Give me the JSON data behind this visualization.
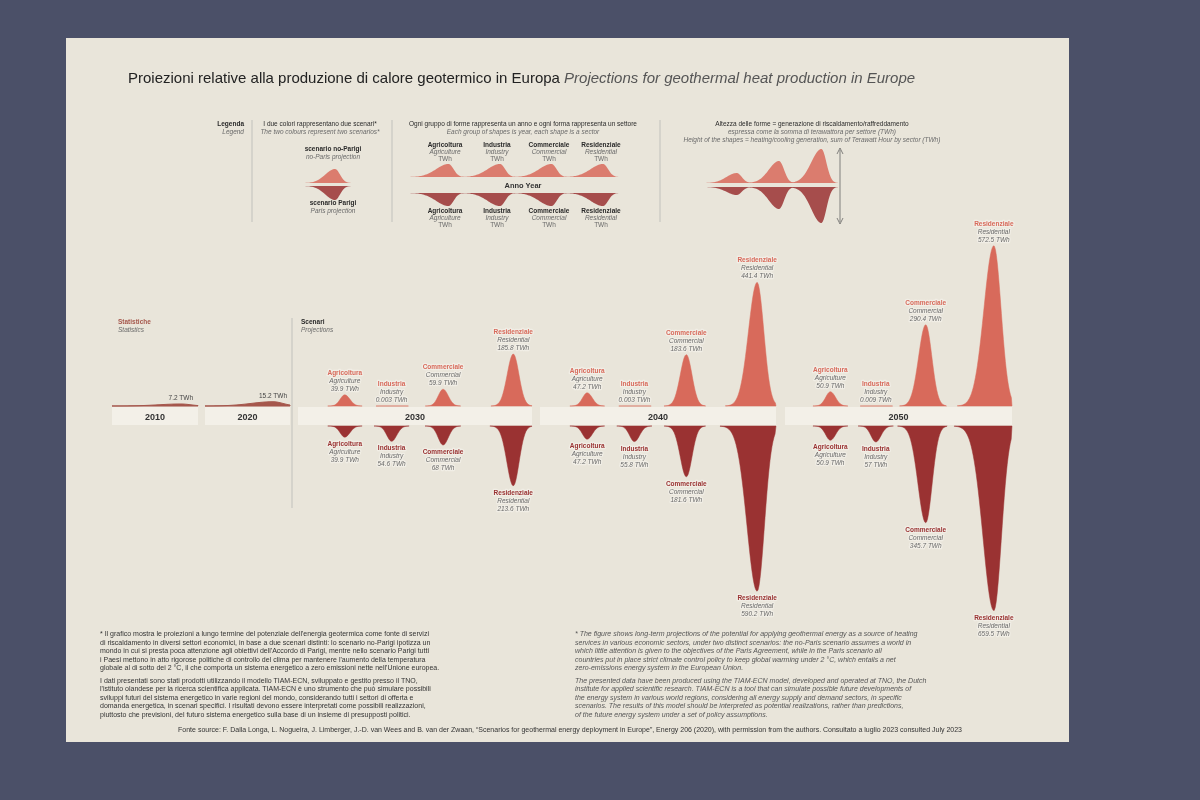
{
  "chart_data": {
    "type": "other",
    "title": "Proiezioni relative alla produzione di calore geotermico in Europa",
    "subtitle": "Projections for geothermal heat production in Europe",
    "categories": [
      "2010",
      "2020",
      "2030",
      "2040",
      "2050"
    ],
    "series": [
      {
        "name": "Statistiche\nStatistics",
        "type": "area",
        "color": "#a5574c",
        "values": [
          7.2,
          15.2,
          null,
          null,
          null
        ],
        "value_labels": [
          "7.2 TWh",
          "15.2 TWh",
          null,
          null,
          null
        ]
      },
      {
        "name": "Agricoltura\nAgriculture",
        "color": "#d86a5b",
        "values": [
          null,
          null,
          39.9,
          47.2,
          50.9
        ],
        "value_labels": [
          null,
          null,
          "39.9 TWh",
          "47.2 TWh",
          "50.9 TWh"
        ]
      },
      {
        "name": "Industria\nIndustry",
        "color": "#d86a5b",
        "values": [
          null,
          null,
          0.003,
          0.003,
          0.009
        ],
        "value_labels": [
          null,
          null,
          "0.003 TWh",
          "0.003 TWh",
          "0.009 TWh"
        ]
      },
      {
        "name": "Commerciale\nCommercial",
        "color": "#d86a5b",
        "values": [
          null,
          null,
          59.9,
          183.6,
          290.4
        ],
        "value_labels": [
          null,
          null,
          "59.9 TWh",
          "183.6 TWh",
          "290.4 TWh"
        ]
      },
      {
        "name": "Residenziale\nResidential",
        "color": "#d86a5b",
        "values": [
          null,
          null,
          185.8,
          441.4,
          572.5
        ],
        "value_labels": [
          null,
          null,
          "185.8 TWh",
          "441.4 TWh",
          "572.5 TWh"
        ]
      },
      {
        "name": "Agricoltura\nAgriculture",
        "color": "#9a3232",
        "axis": "y2",
        "values": [
          null,
          null,
          39.9,
          47.2,
          50.9
        ],
        "value_labels": [
          null,
          null,
          "39.9 TWh",
          "47.2 TWh",
          "50.9 TWh"
        ]
      },
      {
        "name": "Industria\nIndustry",
        "color": "#9a3232",
        "axis": "y2",
        "values": [
          null,
          null,
          54.6,
          55.8,
          57
        ],
        "value_labels": [
          null,
          null,
          "54.6 TWh",
          "55.8 TWh",
          "57 TWh"
        ]
      },
      {
        "name": "Commerciale\nCommercial",
        "color": "#9a3232",
        "axis": "y2",
        "values": [
          null,
          null,
          68,
          181.6,
          345.7
        ],
        "value_labels": [
          null,
          null,
          "68 TWh",
          "181.6 TWh",
          "345.7 TWh"
        ]
      },
      {
        "name": "Residenziale\nResidential",
        "color": "#9a3232",
        "axis": "y2",
        "values": [
          null,
          null,
          213.6,
          590.2,
          659.5
        ],
        "value_labels": [
          null,
          null,
          "213.6 TWh",
          "590.2 TWh",
          "659.5 TWh"
        ]
      }
    ],
    "annotations": [
      "Legenda\nLegend",
      "I due colori rappresentano due scenari*\nThe two colours represent two scenarios*",
      "scenario no-Parigi\nno-Paris projection",
      "scenario Parigi\nParis projection",
      "Ogni gruppo di forme rappresenta un anno e ogni forma rappresenta un settore\nEach group of shapes is year, each shape is a sector",
      "Agricoltura\nAgriculture\nTWh",
      "Industria\nIndustry\nTWh",
      "Commerciale\nCommercial\nTWh",
      "Residenziale\nResidential\nTWh",
      "Anno Year",
      "Altezza delle forme = generazione di riscaldamento/raffreddamento\nespressa come la somma di terawattora per settore (TWh)\nHeight of the shapes = heating/cooling generation, sum of Terawatt Hour by sector (TWh)",
      "Scenari\nProjections",
      "* Il grafico mostra le proiezioni a lungo termine del potenziale dell'energia geotermica come fonte di servizi di riscaldamento in diversi settori economici, in base a due scenari distinti: lo scenario no-Parigi ipotizza un mondo in cui si presta poca attenzione agli obiettivi dell'Accordo di Parigi, mentre nello scenario Parigi tutti i Paesi mettono in atto rigorose politiche di controllo del clima per mantenere l'aumento della temperatura globale al di sotto dei 2 °C, il che comporta un sistema energetico a zero emissioni nette nell'Unione europea.",
      "I dati presentati sono stati prodotti utilizzando il modello TIAM-ECN, sviluppato e gestito presso il TNO, l'istituto olandese per la ricerca scientifica applicata. TIAM-ECN è uno strumento che può simulare possibili sviluppi futuri del sistema energetico in varie regioni del mondo, considerando tutti i settori di offerta e domanda energetica, in scenari specifici. I risultati devono essere interpretati come possibili realizzazioni, piuttosto che previsioni, del futuro sistema energetico sulla base di un insieme di presupposti politici.",
      "* The figure shows long-term projections of the potential for applying geothermal energy as a source of heating services in various economic sectors, under two distinct scenarios: the no-Paris scenario assumes a world in which little attention is given to the objectives of the Paris Agreement, while in the Paris scenario all countries put in place strict climate control policy to keep global warming under 2 °C, which entails a net zero-emissions energy system in the European Union.",
      "The presented data have been produced using the TIAM-ECN model, developed and operated at TNO, the Dutch institute for applied scientific research. TIAM-ECN is a tool that can simulate possible future developments of the energy system in various world regions, considering all energy supply and demand sectors, in specific scenarios. The results of this model should be interpreted as potential realizations, rather than predictions, of the future energy system under a set of policy assumptions.",
      "Fonte source: F. Dalla Longa, L. Nogueira, J. Limberger, J.-D. van Wees and B. van der Zwaan, “Scenarios for geothermal energy deployment in Europe”, Energy 206 (2020), with permission from the authors. Consultato a luglio 2023 consulted July 2023"
    ]
  }
}
